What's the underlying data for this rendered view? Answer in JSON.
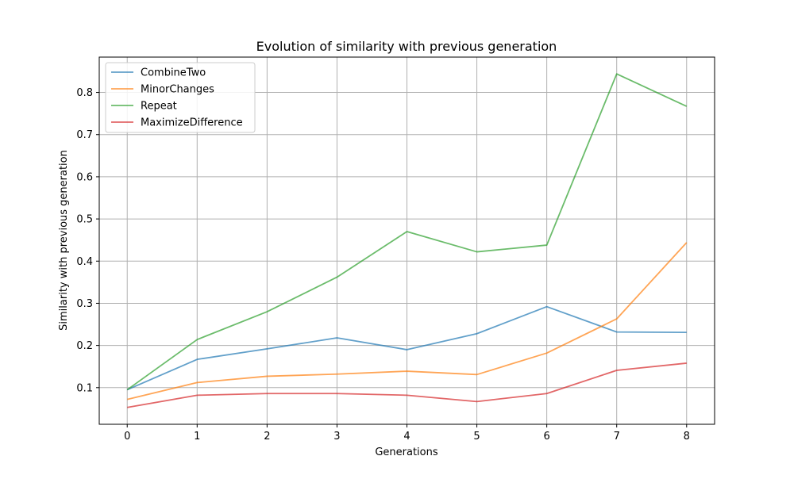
{
  "chart_data": {
    "type": "line",
    "title": "Evolution of similarity with previous generation",
    "xlabel": "Generations",
    "ylabel": "Similarity with previous generation",
    "x": [
      0,
      1,
      2,
      3,
      4,
      5,
      6,
      7,
      8
    ],
    "xlim": [
      -0.4,
      8.4
    ],
    "ylim": [
      0.0131,
      0.8838
    ],
    "xticks": [
      0,
      1,
      2,
      3,
      4,
      5,
      6,
      7,
      8
    ],
    "yticks": [
      0.1,
      0.2,
      0.3,
      0.4,
      0.5,
      0.6,
      0.7,
      0.8
    ],
    "ytick_labels": [
      "0.1",
      "0.2",
      "0.3",
      "0.4",
      "0.5",
      "0.6",
      "0.7",
      "0.8"
    ],
    "grid": true,
    "legend_position": "top-left",
    "series": [
      {
        "name": "CombineTwo",
        "color": "#1f77b4",
        "values": [
          0.095,
          0.167,
          0.192,
          0.218,
          0.19,
          0.228,
          0.292,
          0.232,
          0.231
        ]
      },
      {
        "name": "MinorChanges",
        "color": "#ff7f0e",
        "values": [
          0.072,
          0.112,
          0.127,
          0.132,
          0.139,
          0.131,
          0.182,
          0.263,
          0.444
        ]
      },
      {
        "name": "Repeat",
        "color": "#2ca02c",
        "values": [
          0.095,
          0.214,
          0.28,
          0.362,
          0.47,
          0.422,
          0.438,
          0.844,
          0.767
        ]
      },
      {
        "name": "MaximizeDifference",
        "color": "#d62728",
        "values": [
          0.053,
          0.082,
          0.086,
          0.086,
          0.082,
          0.067,
          0.086,
          0.141,
          0.158
        ]
      }
    ]
  }
}
